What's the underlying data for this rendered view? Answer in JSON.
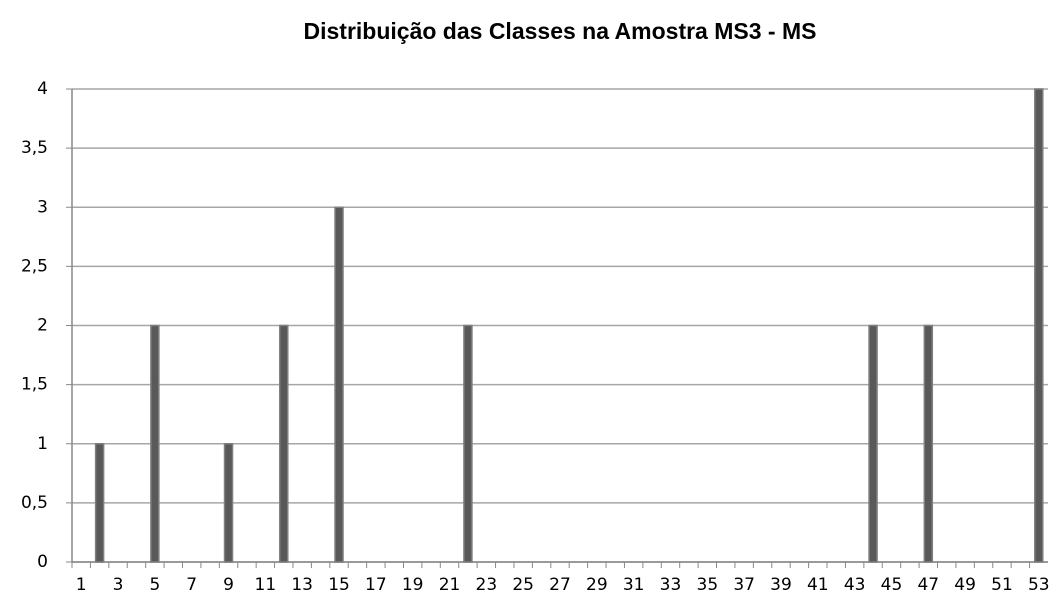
{
  "chart_data": {
    "type": "bar",
    "title": "Distribuição das Classes na Amostra MS3 - MS",
    "categories": [
      "1",
      null,
      "3",
      null,
      "5",
      null,
      "7",
      null,
      "9",
      null,
      "11",
      null,
      "13",
      null,
      "15",
      null,
      "17",
      null,
      "19",
      null,
      "21",
      null,
      "23",
      null,
      "25",
      null,
      "27",
      null,
      "29",
      null,
      "31",
      null,
      "33",
      null,
      "35",
      null,
      "37",
      null,
      "39",
      null,
      "41",
      null,
      "43",
      null,
      "45",
      null,
      "47",
      null,
      "49",
      null,
      "51",
      null,
      "53"
    ],
    "values": [
      0,
      1,
      0,
      0,
      2,
      0,
      0,
      0,
      1,
      0,
      0,
      2,
      0,
      0,
      3,
      0,
      0,
      0,
      0,
      0,
      0,
      2,
      0,
      0,
      0,
      0,
      0,
      0,
      0,
      0,
      0,
      0,
      0,
      0,
      0,
      0,
      0,
      0,
      0,
      0,
      0,
      0,
      0,
      2,
      0,
      0,
      2,
      0,
      0,
      0,
      0,
      0,
      4
    ],
    "color": "#595959",
    "ylim": [
      0,
      4
    ],
    "yticks": [
      0,
      {
        "value": 0.5,
        "label": "0,5"
      },
      1,
      {
        "value": 1.5,
        "label": "1,5"
      },
      2,
      {
        "value": 2.5,
        "label": "2,5"
      },
      3,
      {
        "value": 3.5,
        "label": "3,5"
      },
      4
    ],
    "grid": true
  }
}
